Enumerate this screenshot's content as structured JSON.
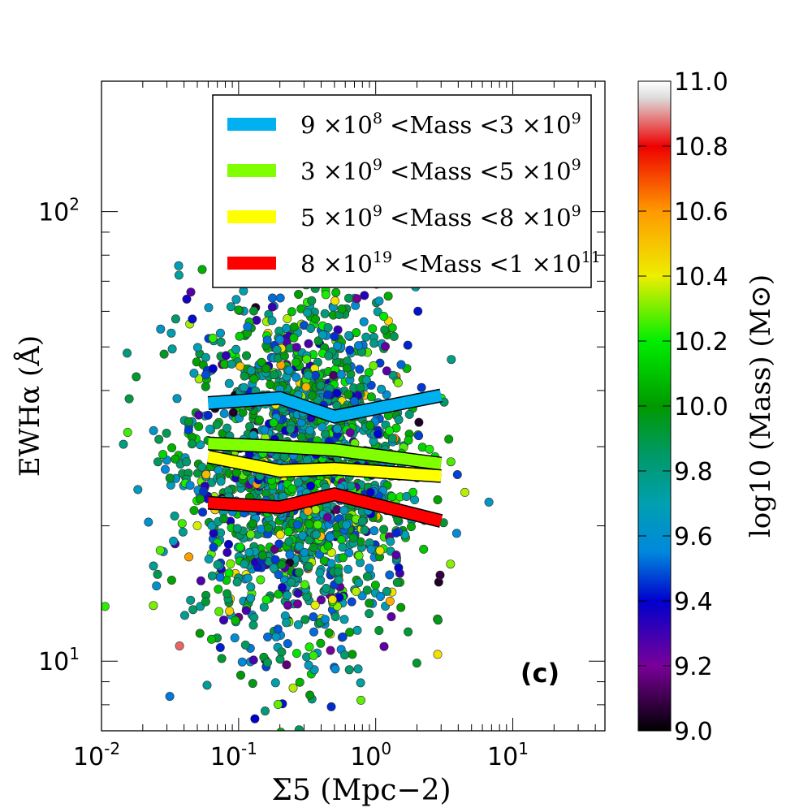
{
  "chart_data": {
    "type": "scatter",
    "panel_label": "(c)",
    "xlabel": "Σ5 (Mpc−2)",
    "ylabel": "EWHα (Å)",
    "xscale": "log",
    "yscale": "log",
    "xlim": [
      0.01,
      47
    ],
    "ylim": [
      7.0,
      195
    ],
    "x_ticks": [
      {
        "value": 0.01,
        "base": "10",
        "exp": "-2"
      },
      {
        "value": 0.1,
        "base": "10",
        "exp": "-1"
      },
      {
        "value": 1,
        "base": "10",
        "exp": "0"
      },
      {
        "value": 10,
        "base": "10",
        "exp": "1"
      }
    ],
    "y_ticks": [
      {
        "value": 10,
        "base": "10",
        "exp": "1"
      },
      {
        "value": 100,
        "base": "10",
        "exp": "2"
      }
    ],
    "colorbar": {
      "label": "log10 (Mass) (M⊙)",
      "range": [
        9.0,
        11.0
      ],
      "ticks": [
        "9.0",
        "9.2",
        "9.4",
        "9.6",
        "9.8",
        "10.0",
        "10.2",
        "10.4",
        "10.6",
        "10.8",
        "11.0"
      ],
      "stops": [
        {
          "v": 9.0,
          "c": "#000000"
        },
        {
          "v": 9.2,
          "c": "#7a0099"
        },
        {
          "v": 9.4,
          "c": "#0000cc"
        },
        {
          "v": 9.55,
          "c": "#0088dd"
        },
        {
          "v": 9.7,
          "c": "#00a0b0"
        },
        {
          "v": 9.85,
          "c": "#009966"
        },
        {
          "v": 10.0,
          "c": "#009900"
        },
        {
          "v": 10.2,
          "c": "#00ee00"
        },
        {
          "v": 10.4,
          "c": "#eeee00"
        },
        {
          "v": 10.6,
          "c": "#ff9900"
        },
        {
          "v": 10.8,
          "c": "#ee0000"
        },
        {
          "v": 10.95,
          "c": "#dddddd"
        },
        {
          "v": 11.0,
          "c": "#ffffff"
        }
      ]
    },
    "series": [
      {
        "name": "9 ×10^8 <Mass <3 ×10^9",
        "label_parts": [
          "9 ×10",
          "8",
          " <Mass <3 ×10",
          "9"
        ],
        "color": "#00b0f0",
        "x": [
          0.06,
          0.2,
          0.5,
          3.0
        ],
        "y": [
          37.5,
          38.5,
          35.0,
          39.0
        ]
      },
      {
        "name": "3 ×10^9 <Mass <5 ×10^9",
        "label_parts": [
          "3 ×10",
          "9",
          " <Mass <5 ×10",
          "9"
        ],
        "color": "#80ff00",
        "x": [
          0.06,
          0.2,
          0.5,
          3.0
        ],
        "y": [
          30.5,
          30.0,
          29.5,
          27.5
        ]
      },
      {
        "name": "5 ×10^9 <Mass <8 ×10^9",
        "label_parts": [
          "5 ×10",
          "9",
          " <Mass <8 ×10",
          "9"
        ],
        "color": "#ffff00",
        "x": [
          0.06,
          0.2,
          0.5,
          3.0
        ],
        "y": [
          28.5,
          26.5,
          26.8,
          25.8
        ]
      },
      {
        "name": "8 ×10^19 <Mass <1 ×10^11",
        "label_parts": [
          "8 ×10",
          "19",
          " <Mass <1 ×10",
          "11"
        ],
        "color": "#ff0000",
        "x": [
          0.06,
          0.2,
          0.5,
          3.0
        ],
        "y": [
          22.5,
          22.0,
          23.5,
          20.5
        ]
      }
    ],
    "scatter": {
      "description": "approximately 1800 individual galaxies coloured by log10 stellar mass",
      "count": 1800,
      "x_log_center": -0.55,
      "x_log_sigma": 0.42,
      "y_log_center": 1.43,
      "y_log_sigma": 0.2,
      "mass_center": 9.8,
      "mass_sigma": 0.3
    }
  }
}
